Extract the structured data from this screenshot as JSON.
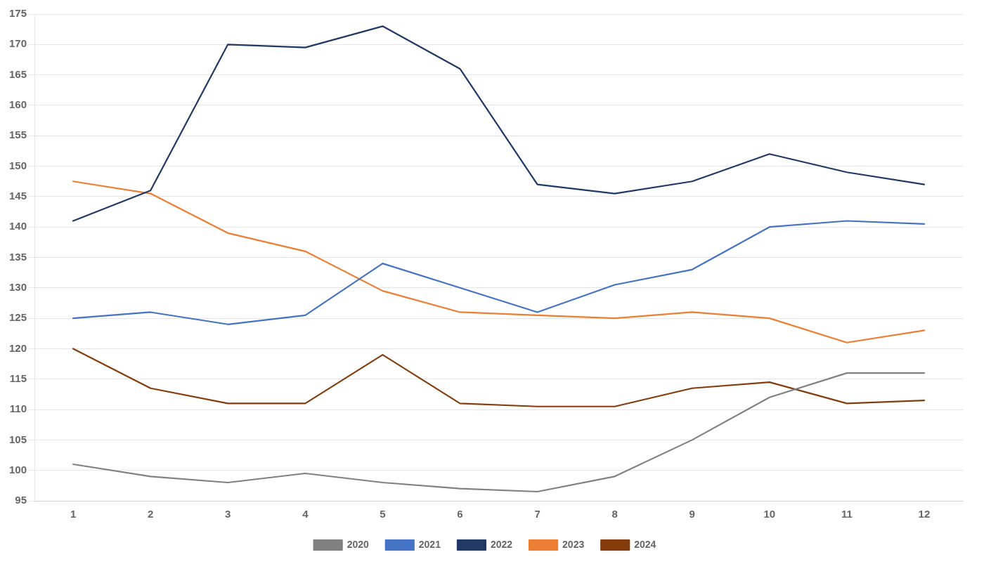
{
  "chart_data": {
    "type": "line",
    "x": [
      1,
      2,
      3,
      4,
      5,
      6,
      7,
      8,
      9,
      10,
      11,
      12
    ],
    "series": [
      {
        "name": "2020",
        "color": "#808080",
        "values": [
          101,
          99,
          98,
          99.5,
          98,
          97,
          96.5,
          99,
          105,
          112,
          116,
          116
        ]
      },
      {
        "name": "2021",
        "color": "#4472C4",
        "values": [
          125,
          126,
          124,
          125.5,
          134,
          130,
          126,
          130.5,
          133,
          140,
          141,
          140.5
        ]
      },
      {
        "name": "2022",
        "color": "#1F3864",
        "values": [
          141,
          146,
          170,
          169.5,
          173,
          166,
          147,
          145.5,
          147.5,
          152,
          149,
          147
        ]
      },
      {
        "name": "2023",
        "color": "#ED7D31",
        "values": [
          147.5,
          145.5,
          139,
          136,
          129.5,
          126,
          125.5,
          125,
          126,
          125,
          121,
          123
        ]
      },
      {
        "name": "2024",
        "color": "#843C0C",
        "values": [
          120,
          113.5,
          111,
          111,
          119,
          111,
          110.5,
          110.5,
          113.5,
          114.5,
          111,
          111.5
        ]
      }
    ],
    "xlim": [
      0.5,
      12.5
    ],
    "xticks": [
      1,
      2,
      3,
      4,
      5,
      6,
      7,
      8,
      9,
      10,
      11,
      12
    ],
    "ylim": [
      95,
      175
    ],
    "yticks": [
      95,
      100,
      105,
      110,
      115,
      120,
      125,
      130,
      135,
      140,
      145,
      150,
      155,
      160,
      165,
      170,
      175
    ],
    "grid": "y",
    "legend": "bottom"
  }
}
